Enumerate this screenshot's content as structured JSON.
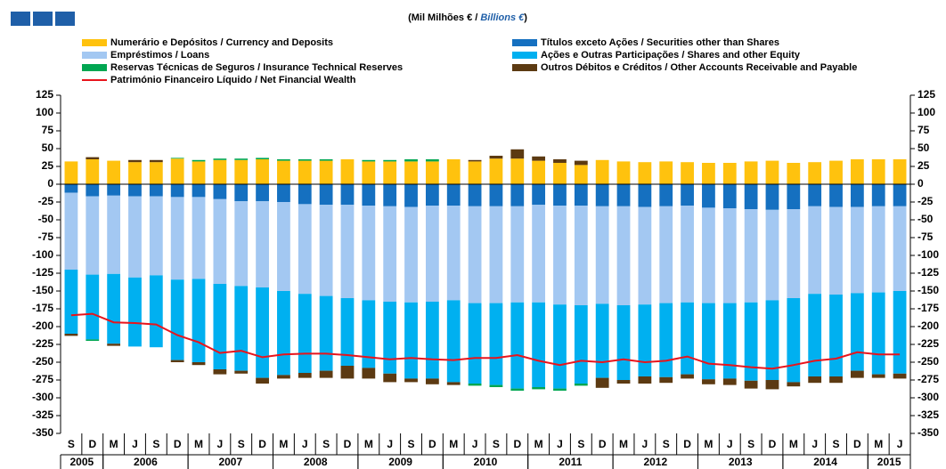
{
  "chart_data": {
    "type": "bar",
    "title": {
      "pt": "(Mil Milhões € / ",
      "en": "Billions  €",
      "close": ")"
    },
    "categories": [
      "S",
      "D",
      "M",
      "J",
      "S",
      "D",
      "M",
      "J",
      "S",
      "D",
      "M",
      "J",
      "S",
      "D",
      "M",
      "J",
      "S",
      "D",
      "M",
      "J",
      "S",
      "D",
      "M",
      "J",
      "S",
      "D",
      "M",
      "J",
      "S",
      "D",
      "M",
      "J",
      "S",
      "D",
      "M",
      "J",
      "S",
      "D",
      "M",
      "J"
    ],
    "year_labels": [
      "2005",
      null,
      "2006",
      null,
      null,
      null,
      "2007",
      null,
      null,
      null,
      "2008",
      null,
      null,
      null,
      "2009",
      null,
      null,
      null,
      "2010",
      null,
      null,
      null,
      "2011",
      null,
      null,
      null,
      "2012",
      null,
      null,
      null,
      "2013",
      null,
      null,
      null,
      "2014",
      null,
      null,
      null,
      "2015",
      null
    ],
    "ylim": [
      -350,
      125
    ],
    "yticks": [
      -350,
      -325,
      -300,
      -275,
      -250,
      -225,
      -200,
      -175,
      -150,
      -125,
      -100,
      -75,
      -50,
      -25,
      0,
      25,
      50,
      75,
      100,
      125
    ],
    "y2lim": [
      -350,
      125
    ],
    "y2ticks": [
      -350,
      -325,
      -300,
      -275,
      -250,
      -225,
      -200,
      -175,
      -150,
      -125,
      -100,
      -75,
      -50,
      -25,
      0,
      25,
      50,
      75,
      100,
      125
    ],
    "stacked": true,
    "series": [
      {
        "name": "Numerário e Depósitos / Currency and Deposits",
        "color": "#FFC20E",
        "values": [
          32,
          35,
          33,
          31,
          31,
          36,
          32,
          34,
          34,
          35,
          33,
          33,
          33,
          35,
          32,
          32,
          32,
          32,
          35,
          32,
          36,
          36,
          33,
          30,
          27,
          34,
          32,
          31,
          32,
          31,
          30,
          30,
          32,
          33,
          30,
          31,
          33,
          35,
          35,
          35
        ]
      },
      {
        "name": "Títulos exceto Ações / Securities other than Shares",
        "color": "#1570C0",
        "values": [
          -12,
          -17,
          -16,
          -17,
          -17,
          -18,
          -18,
          -21,
          -24,
          -24,
          -25,
          -28,
          -29,
          -29,
          -30,
          -31,
          -32,
          -30,
          -30,
          -31,
          -31,
          -31,
          -29,
          -30,
          -30,
          -31,
          -31,
          -32,
          -31,
          -30,
          -33,
          -34,
          -35,
          -36,
          -35,
          -31,
          -32,
          -32,
          -31,
          -31
        ]
      },
      {
        "name": "Empréstimos / Loans",
        "color": "#A3C8F2",
        "values": [
          -108,
          -110,
          -110,
          -114,
          -111,
          -116,
          -115,
          -119,
          -119,
          -121,
          -125,
          -126,
          -128,
          -131,
          -133,
          -134,
          -134,
          -135,
          -133,
          -136,
          -136,
          -135,
          -137,
          -139,
          -140,
          -137,
          -139,
          -137,
          -136,
          -136,
          -134,
          -133,
          -131,
          -127,
          -125,
          -123,
          -123,
          -121,
          -121,
          -119
        ]
      },
      {
        "name": "Ações e Outras Participações / Shares and other Equity",
        "color": "#00B0F0",
        "values": [
          -90,
          -91,
          -98,
          -97,
          -101,
          -113,
          -117,
          -120,
          -119,
          -127,
          -118,
          -111,
          -105,
          -95,
          -95,
          -101,
          -107,
          -108,
          -115,
          -113,
          -115,
          -121,
          -119,
          -118,
          -110,
          -104,
          -105,
          -101,
          -104,
          -101,
          -107,
          -106,
          -110,
          -112,
          -118,
          -116,
          -115,
          -109,
          -115,
          -116
        ]
      },
      {
        "name": "Reservas Técnicas de Seguros / Insurance Technical Reserves",
        "color": "#00A651",
        "values": [
          0,
          -2,
          0,
          0,
          0,
          1,
          2,
          2,
          2,
          2,
          2,
          2,
          2,
          0,
          2,
          2,
          3,
          3,
          0,
          -3,
          -3,
          -3,
          -3,
          -3,
          -3,
          0,
          0,
          0,
          0,
          0,
          0,
          0,
          0,
          0,
          0,
          0,
          0,
          0,
          0,
          0
        ]
      },
      {
        "name": "Outros Débitos e Créditos / Other Accounts Receivable and Payable",
        "color": "#5C3A12",
        "values": [
          -3,
          3,
          -3,
          3,
          3,
          -3,
          -4,
          -7,
          -4,
          -8,
          -5,
          -7,
          -10,
          -18,
          -15,
          -12,
          -5,
          -8,
          -4,
          2,
          4,
          13,
          6,
          5,
          6,
          -14,
          -5,
          -10,
          -8,
          -6,
          -7,
          -9,
          -11,
          -13,
          -6,
          -9,
          -9,
          -10,
          -5,
          -7
        ]
      },
      {
        "name": "Património Financeiro Líquido / Net Financial Wealth",
        "color": "#E8141C",
        "type": "line",
        "values": [
          -184,
          -182,
          -194,
          -195,
          -197,
          -212,
          -222,
          -237,
          -234,
          -243,
          -239,
          -238,
          -238,
          -240,
          -243,
          -246,
          -244,
          -246,
          -247,
          -244,
          -244,
          -240,
          -248,
          -254,
          -248,
          -250,
          -246,
          -250,
          -248,
          -242,
          -252,
          -254,
          -257,
          -259,
          -254,
          -248,
          -245,
          -236,
          -239,
          -239
        ]
      }
    ]
  }
}
